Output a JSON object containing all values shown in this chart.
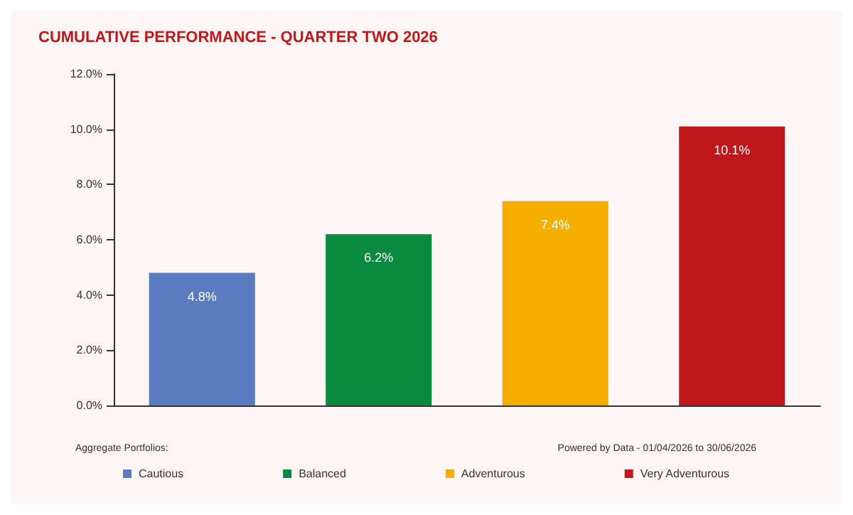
{
  "chart_data": {
    "type": "bar",
    "title": "CUMULATIVE PERFORMANCE - QUARTER TWO 2026",
    "categories": [
      null,
      null,
      null,
      null
    ],
    "series": [
      {
        "name": "Cautious",
        "color": "#5b7bc0",
        "values": [
          4.8,
          null,
          null,
          null
        ]
      },
      {
        "name": "Balanced",
        "color": "#0a8a3e",
        "values": [
          null,
          6.2,
          null,
          null
        ]
      },
      {
        "name": "Adventurous",
        "color": "#f5ad00",
        "values": [
          null,
          null,
          7.4,
          null
        ]
      },
      {
        "name": "Very Adventurous",
        "color": "#c0181a",
        "values": [
          null,
          null,
          null,
          10.1
        ]
      }
    ],
    "stacked": true,
    "ylim": [
      0,
      12
    ],
    "yticks": [
      {
        "value": 0,
        "label": "0.0%"
      },
      {
        "value": 2,
        "label": "2.0%"
      },
      {
        "value": 4,
        "label": "4.0%"
      },
      {
        "value": 6,
        "label": "6.0%"
      },
      {
        "value": 8,
        "label": "8.0%"
      },
      {
        "value": 10,
        "label": "10.0%"
      },
      {
        "value": 12,
        "label": "12.0%"
      }
    ],
    "value_labels": [
      "4.8%",
      "6.2%",
      "7.4%",
      "10.1%"
    ],
    "annotations": [
      "Aggregate Portfolios:",
      "Powered by Data - 01/04/2026 to 30/06/2026"
    ],
    "legend": "bottom",
    "grid": false
  }
}
